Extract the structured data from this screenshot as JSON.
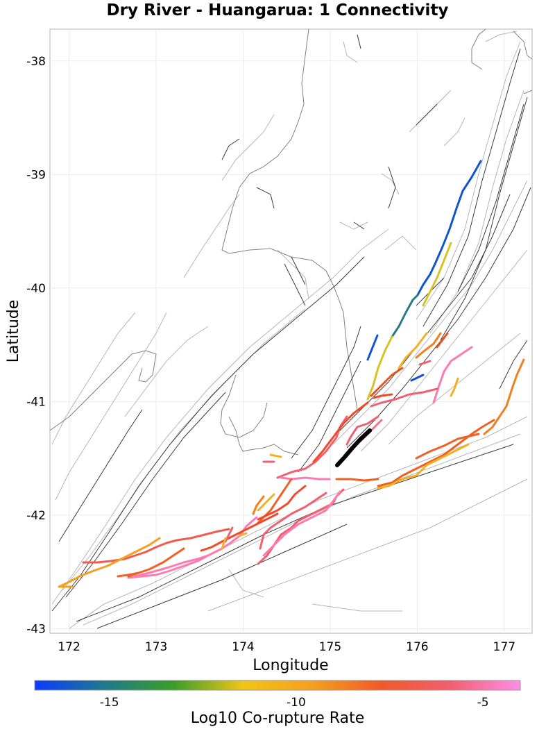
{
  "title": "Dry River - Huangarua: 1 Connectivity",
  "x_axis": {
    "label": "Longitude",
    "ticks": [
      "172",
      "173",
      "174",
      "175",
      "176",
      "177"
    ],
    "values": [
      172,
      173,
      174,
      175,
      176,
      177
    ],
    "range": [
      171.78,
      177.32
    ]
  },
  "y_axis": {
    "label": "Latitude",
    "ticks": [
      "-38",
      "-39",
      "-40",
      "-41",
      "-42",
      "-43"
    ],
    "values": [
      -38,
      -39,
      -40,
      -41,
      -42,
      -43
    ],
    "range": [
      -43.04,
      -37.72
    ]
  },
  "colorbar": {
    "label": "Log10 Co-rupture Rate",
    "ticks": [
      "-15",
      "-10",
      "-5"
    ],
    "tick_values": [
      -15,
      -10,
      -5
    ],
    "range": [
      -17,
      -4
    ],
    "colors": [
      "#0a3cff",
      "#1f7a8c",
      "#3a9e2a",
      "#f0c419",
      "#f4a020",
      "#f05a28",
      "#f06070",
      "#ff8ee8"
    ]
  },
  "colors": {
    "coastline": "#808080",
    "fault_trace": "#333333",
    "fault_surface": "#b0b0b0",
    "source_fault": "#000000",
    "grid": "#ebebeb"
  }
}
